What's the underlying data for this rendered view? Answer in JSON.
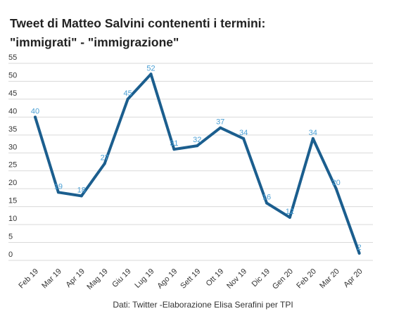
{
  "title_line1": "Tweet di Matteo Salvini contenenti i termini:",
  "title_line2": "\"immigrati\" - \"immigrazione\"",
  "source": "Dati: Twitter -Elaborazione Elisa Serafini per TPI",
  "colors": {
    "line": "#1b5e8e",
    "data_label": "#4a9fd4",
    "grid": "#d9d9d9",
    "axis_text": "#333333"
  },
  "chart_data": {
    "type": "line",
    "categories": [
      "Feb 19",
      "Mar 19",
      "Apr 19",
      "Mag 19",
      "Giu 19",
      "Lug 19",
      "Ago 19",
      "Sett 19",
      "Ott 19",
      "Nov 19",
      "Dic 19",
      "Gen 20",
      "Feb 20",
      "Mar 20",
      "Apr 20"
    ],
    "series": [
      {
        "values": [
          40,
          19,
          18,
          27,
          45,
          52,
          31,
          32,
          37,
          34,
          16,
          12,
          34,
          20,
          2
        ]
      }
    ],
    "data_labels": [
      "40",
      "19",
      "18",
      "27",
      "45",
      "52",
      "31",
      "32",
      "37",
      "34",
      "16",
      "12",
      "34",
      "20",
      "2"
    ],
    "yticks": [
      "0",
      "5",
      "10",
      "15",
      "20",
      "25",
      "30",
      "35",
      "40",
      "45",
      "50",
      "55"
    ],
    "ylim": [
      0,
      55
    ],
    "grid": true,
    "legend": "none"
  }
}
